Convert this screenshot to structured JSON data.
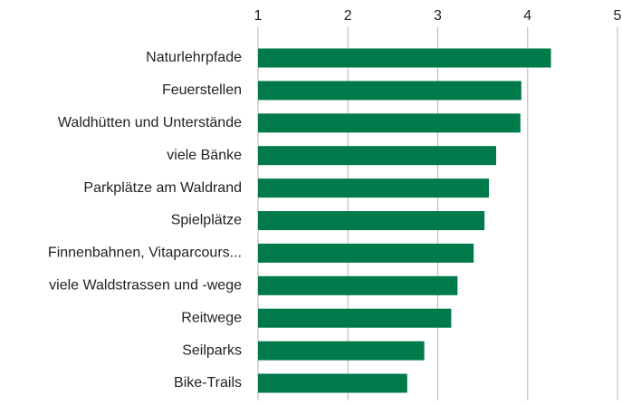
{
  "chart_data": {
    "type": "bar",
    "orientation": "horizontal",
    "categories": [
      "Naturlehrpfade",
      "Feuerstellen",
      "Waldhütten und Unterstände",
      "viele Bänke",
      "Parkplätze am Waldrand",
      "Spielplätze",
      "Finnenbahnen, Vitaparcours...",
      "viele Waldstrassen und -wege",
      "Reitwege",
      "Seilparks",
      "Bike-Trails"
    ],
    "values": [
      4.26,
      3.93,
      3.92,
      3.65,
      3.57,
      3.52,
      3.4,
      3.22,
      3.15,
      2.85,
      2.66
    ],
    "color": "#007a4a",
    "xlim": [
      1,
      5
    ],
    "xticks": [
      1,
      2,
      3,
      4,
      5
    ],
    "grid": true
  }
}
